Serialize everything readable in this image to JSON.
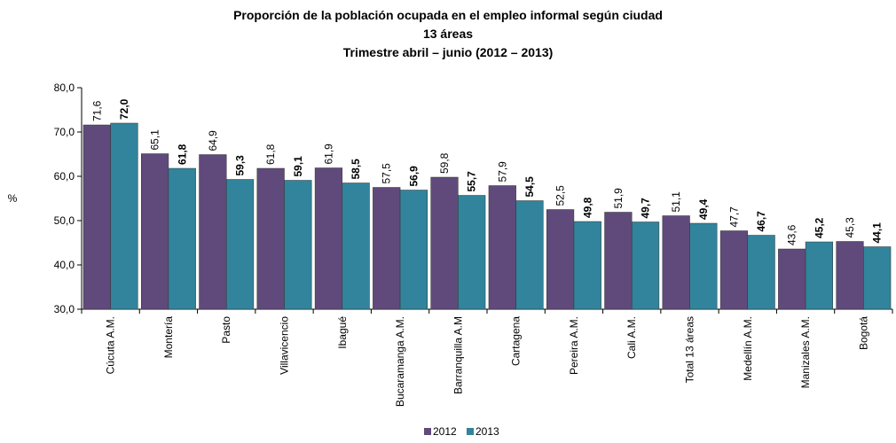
{
  "chart_data": {
    "type": "bar",
    "title": [
      "Proporción de la población ocupada en el empleo informal según ciudad",
      "13 áreas",
      "Trimestre abril – junio (2012 – 2013)"
    ],
    "y_label": "%",
    "categories": [
      "Cúcuta A.M.",
      "Montería",
      "Pasto",
      "Villavicencio",
      "Ibagué",
      "Bucaramanga A.M.",
      "Barranquilla A.M",
      "Cartagena",
      "Pereira A.M.",
      "Cali A.M.",
      "Total 13 áreas",
      "Medellín A.M.",
      "Manizales A.M.",
      "Bogotá"
    ],
    "series": [
      {
        "name": "2012",
        "color": "#604a7b",
        "values": [
          71.6,
          65.1,
          64.9,
          61.8,
          61.9,
          57.5,
          59.8,
          57.9,
          52.5,
          51.9,
          51.1,
          47.7,
          43.6,
          45.3
        ],
        "value_labels": [
          "71,6",
          "65,1",
          "64,9",
          "61,8",
          "61,9",
          "57,5",
          "59,8",
          "57,9",
          "52,5",
          "51,9",
          "51,1",
          "47,7",
          "43,6",
          "45,3"
        ]
      },
      {
        "name": "2013",
        "color": "#31849b",
        "values": [
          72.0,
          61.8,
          59.3,
          59.1,
          58.5,
          56.9,
          55.7,
          54.5,
          49.8,
          49.7,
          49.4,
          46.7,
          45.2,
          44.1
        ],
        "value_labels": [
          "72,0",
          "61,8",
          "59,3",
          "59,1",
          "58,5",
          "56,9",
          "55,7",
          "54,5",
          "49,8",
          "49,7",
          "49,4",
          "46,7",
          "45,2",
          "44,1"
        ]
      }
    ],
    "ylim": [
      30,
      80
    ],
    "yticks": [
      {
        "value": 30,
        "label": "30,0"
      },
      {
        "value": 40,
        "label": "40,0"
      },
      {
        "value": 50,
        "label": "50,0"
      },
      {
        "value": 60,
        "label": "60,0"
      },
      {
        "value": 70,
        "label": "70,0"
      },
      {
        "value": 80,
        "label": "80,0"
      }
    ],
    "legend": "bottom"
  }
}
